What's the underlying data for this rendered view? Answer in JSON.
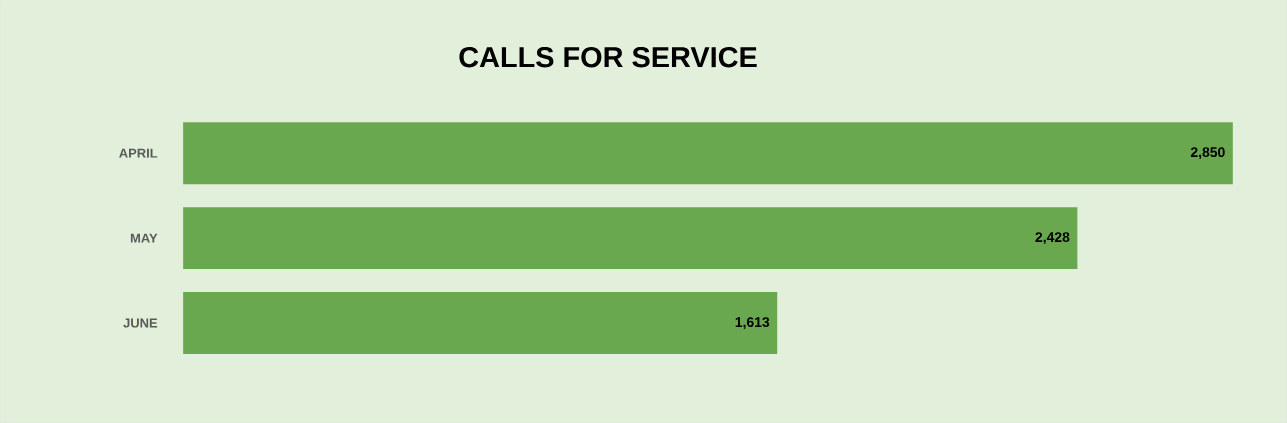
{
  "chart_data": {
    "type": "bar",
    "orientation": "horizontal",
    "title": "CALLS FOR SERVICE",
    "categories": [
      "APRIL",
      "MAY",
      "JUNE"
    ],
    "values": [
      2850,
      2428,
      1613
    ],
    "value_labels": [
      "2,850",
      "2,428",
      "1,613"
    ],
    "color": "#6aa84f"
  }
}
